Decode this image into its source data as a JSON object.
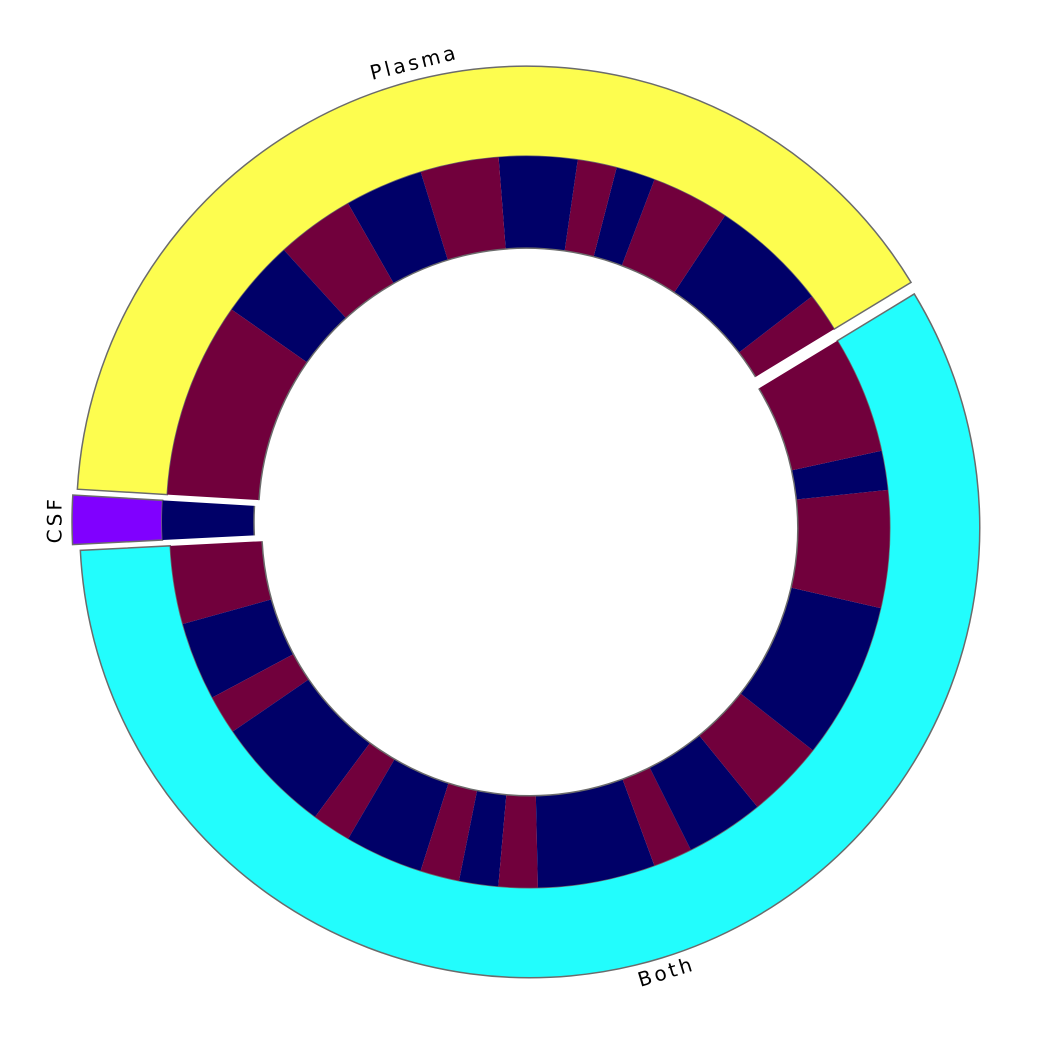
{
  "chart_data": {
    "type": "nested-donut",
    "categories": [
      "Plasma",
      "CSF",
      "Both"
    ],
    "values": [
      23,
      1,
      33
    ],
    "colors": [
      "#fdfd4f",
      "#8000ff",
      "#22fdfd"
    ],
    "inner": {
      "values": [
        1,
        3,
        2,
        1,
        1,
        2,
        2,
        2,
        2,
        2,
        5,
        1,
        2,
        2,
        1,
        3,
        1,
        2,
        1,
        1,
        1,
        3,
        1,
        2,
        2,
        4,
        3,
        1,
        3
      ],
      "colors": [
        "#71003c",
        "#000068"
      ]
    }
  }
}
